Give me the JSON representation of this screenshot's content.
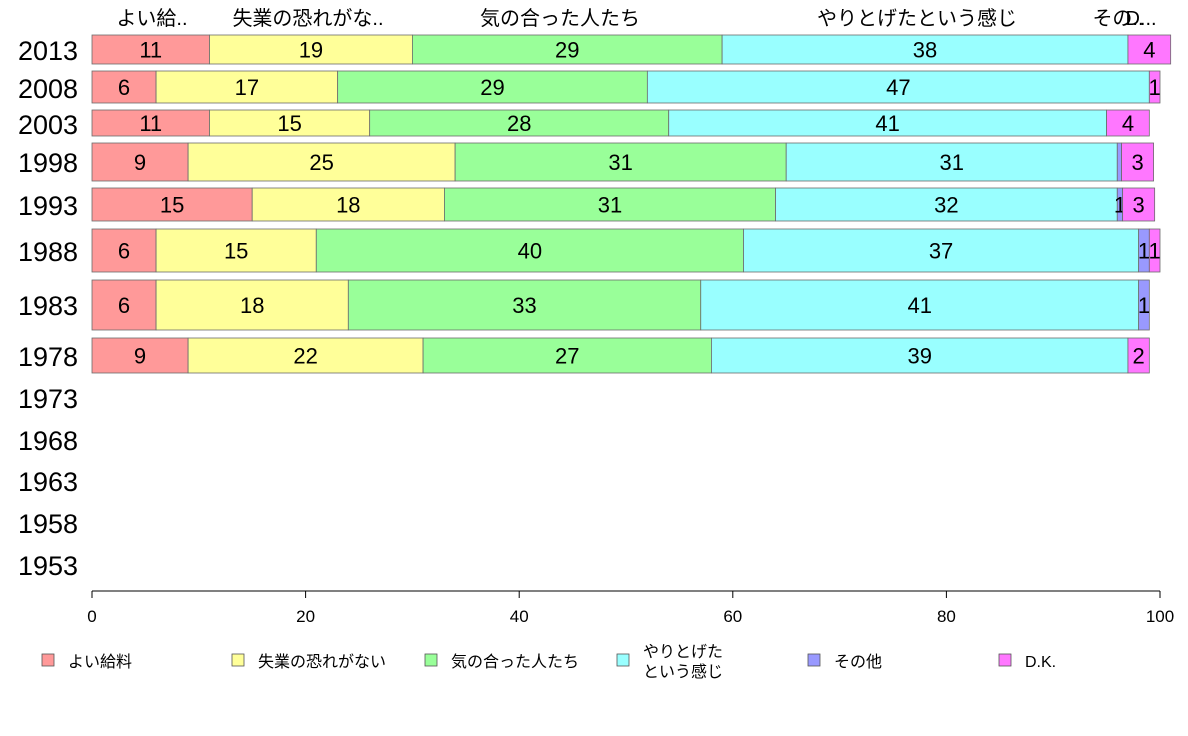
{
  "chart_data": {
    "type": "bar",
    "orientation": "horizontal",
    "stacked": true,
    "categories": [
      "2013",
      "2008",
      "2003",
      "1998",
      "1993",
      "1988",
      "1983",
      "1978",
      "1973",
      "1968",
      "1963",
      "1958",
      "1953"
    ],
    "series": [
      {
        "name": "よい給料",
        "color": "#ff9999",
        "values": [
          11,
          6,
          11,
          9,
          15,
          6,
          6,
          9,
          null,
          null,
          null,
          null,
          null
        ]
      },
      {
        "name": "失業の恐れがない",
        "color": "#ffff99",
        "values": [
          19,
          17,
          15,
          25,
          18,
          15,
          18,
          22,
          null,
          null,
          null,
          null,
          null
        ]
      },
      {
        "name": "気の合った人たち",
        "color": "#99ff99",
        "values": [
          29,
          29,
          28,
          31,
          31,
          40,
          33,
          27,
          null,
          null,
          null,
          null,
          null
        ]
      },
      {
        "name": "やりとげたという感じ",
        "color": "#99ffff",
        "values": [
          38,
          47,
          41,
          31,
          32,
          37,
          41,
          39,
          null,
          null,
          null,
          null,
          null
        ]
      },
      {
        "name": "その他",
        "color": "#9999ff",
        "values": [
          0,
          0,
          0,
          0.4,
          0.5,
          1,
          1,
          0,
          null,
          null,
          null,
          null,
          null
        ]
      },
      {
        "name": "D.K.",
        "color": "#ff77ff",
        "values": [
          4,
          1,
          4,
          3,
          3,
          1,
          0,
          2,
          null,
          null,
          null,
          null,
          null
        ]
      }
    ],
    "segment_labels": [
      [
        "11",
        "19",
        "29",
        "38",
        "",
        "4"
      ],
      [
        "6",
        "17",
        "29",
        "47",
        "",
        "1"
      ],
      [
        "11",
        "15",
        "28",
        "41",
        "",
        "4"
      ],
      [
        "9",
        "25",
        "31",
        "31",
        "",
        "3"
      ],
      [
        "15",
        "18",
        "31",
        "32",
        "1",
        "3"
      ],
      [
        "6",
        "15",
        "40",
        "37",
        "1",
        "1"
      ],
      [
        "6",
        "18",
        "33",
        "41",
        "1",
        ""
      ],
      [
        "9",
        "22",
        "27",
        "39",
        "",
        "2"
      ]
    ],
    "top_labels": [
      "よい給..",
      "失業の恐れがな..",
      "気の合った人たち",
      "やりとげたという感じ",
      "その..",
      "D..."
    ],
    "legend_labels": [
      [
        "よい給料"
      ],
      [
        "失業の恐れがない"
      ],
      [
        "気の合った人たち"
      ],
      [
        "やりとげた",
        "という感じ"
      ],
      [
        "その他"
      ],
      [
        "D.K."
      ]
    ],
    "x_ticks": [
      "0",
      "20",
      "40",
      "60",
      "80",
      "100"
    ],
    "xlim": [
      0,
      100
    ],
    "legend_position": "bottom",
    "grid": false
  }
}
